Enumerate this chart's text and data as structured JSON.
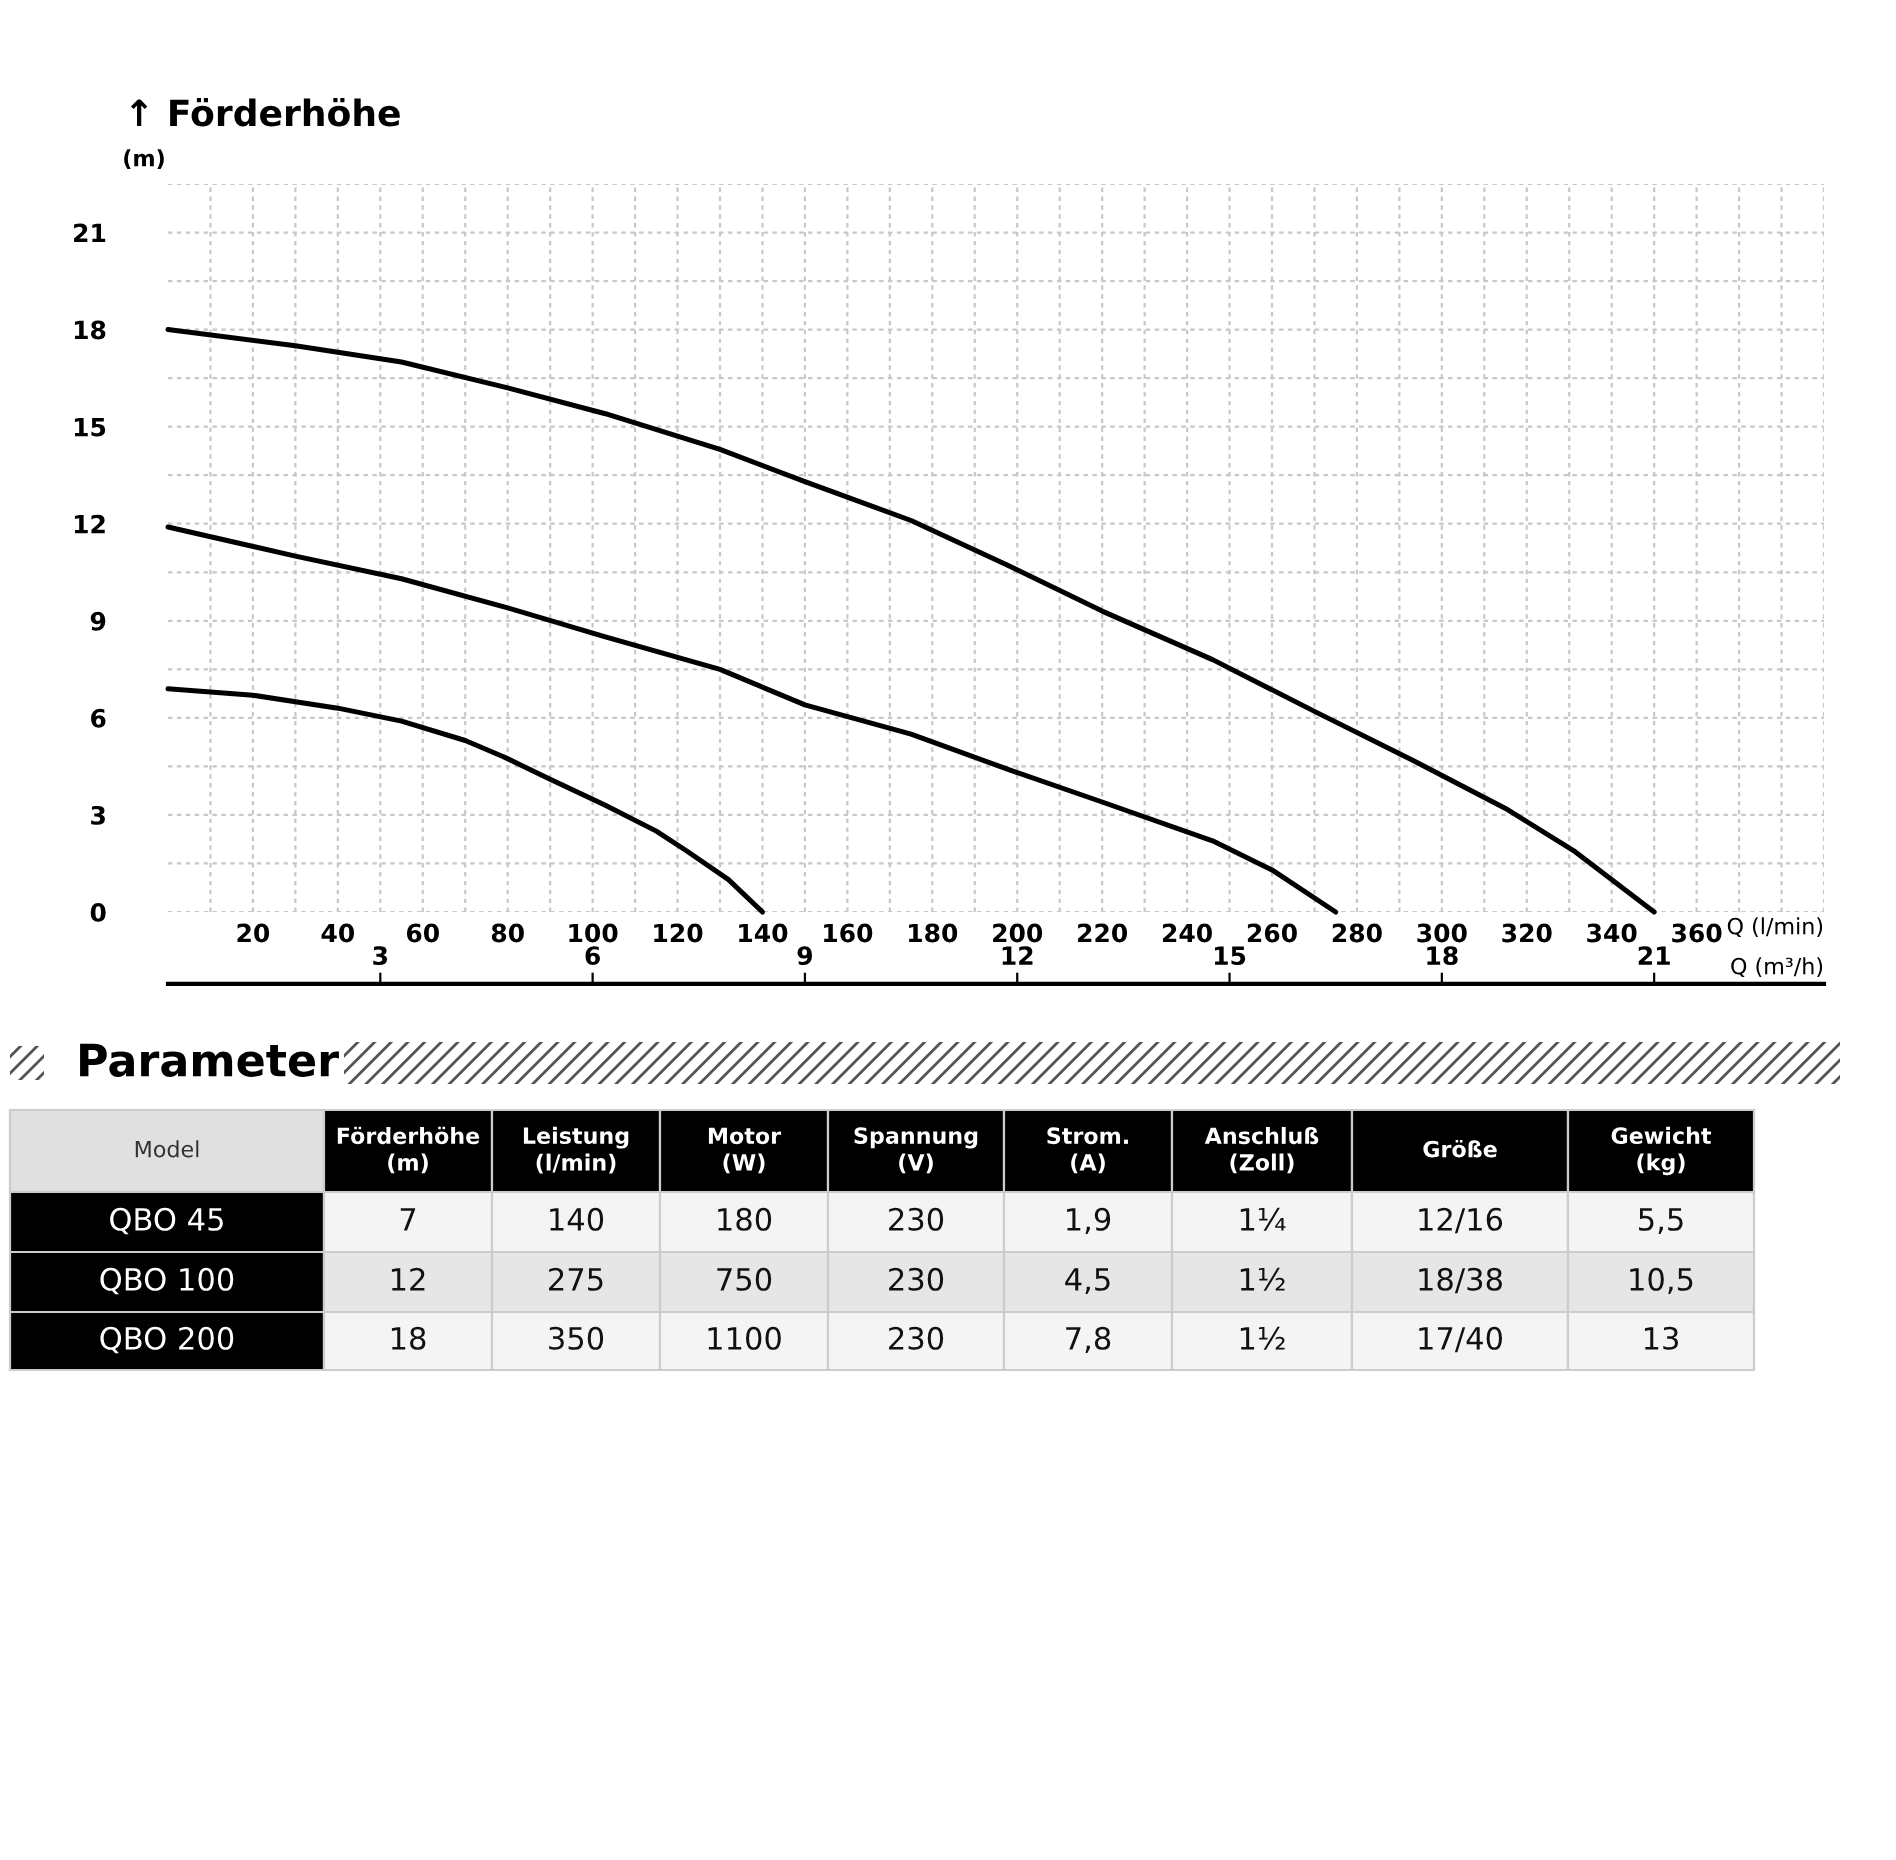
{
  "chart_data": [
    {
      "type": "line",
      "title": "↑ Förderhöhe",
      "ylabel": "(m)",
      "xlabel": "Q (l/min)",
      "x2label": "Q (m³/h)",
      "series": [
        {
          "color": "#000000",
          "x": [
            0,
            20,
            40,
            55,
            70,
            79,
            90,
            103,
            115,
            122,
            132,
            140
          ],
          "values": [
            6.9,
            6.7,
            6.3,
            5.9,
            5.3,
            4.8,
            4.1,
            3.3,
            2.5,
            1.9,
            1.0,
            0
          ]
        },
        {
          "color": "#000000",
          "x": [
            0,
            30,
            55,
            80,
            103,
            130,
            150,
            175,
            198,
            220,
            246,
            260,
            275
          ],
          "values": [
            11.9,
            11.0,
            10.3,
            9.4,
            8.5,
            7.5,
            6.4,
            5.5,
            4.4,
            3.4,
            2.2,
            1.3,
            0
          ]
        },
        {
          "color": "#000000",
          "x": [
            0,
            30,
            55,
            80,
            103,
            130,
            150,
            175,
            198,
            220,
            246,
            270,
            293,
            315,
            331,
            350
          ],
          "values": [
            18.0,
            17.5,
            17.0,
            16.2,
            15.4,
            14.3,
            13.3,
            12.1,
            10.7,
            9.3,
            7.8,
            6.2,
            4.7,
            3.2,
            1.9,
            0
          ]
        }
      ],
      "xlim": [
        0,
        390
      ],
      "xticks": [
        {
          "value": 10,
          "label": null
        },
        20,
        {
          "value": 30,
          "label": null
        },
        40,
        {
          "value": 50,
          "label": null
        },
        60,
        {
          "value": 70,
          "label": null
        },
        80,
        {
          "value": 90,
          "label": null
        },
        100,
        {
          "value": 110,
          "label": null
        },
        120,
        {
          "value": 130,
          "label": null
        },
        140,
        {
          "value": 150,
          "label": null
        },
        160,
        {
          "value": 170,
          "label": null
        },
        180,
        {
          "value": 190,
          "label": null
        },
        200,
        {
          "value": 210,
          "label": null
        },
        220,
        {
          "value": 230,
          "label": null
        },
        240,
        {
          "value": 250,
          "label": null
        },
        260,
        {
          "value": 270,
          "label": null
        },
        280,
        {
          "value": 290,
          "label": null
        },
        300,
        {
          "value": 310,
          "label": null
        },
        320,
        {
          "value": 330,
          "label": null
        },
        340,
        {
          "value": 350,
          "label": null
        },
        360,
        {
          "value": 370,
          "label": null
        },
        {
          "value": 380,
          "label": null
        },
        {
          "value": 390,
          "label": null
        }
      ],
      "ylim": [
        0,
        22.5
      ],
      "yticks": [
        0,
        {
          "value": 1.5,
          "label": null
        },
        3,
        {
          "value": 4.5,
          "label": null
        },
        6,
        {
          "value": 7.5,
          "label": null
        },
        9,
        {
          "value": 10.5,
          "label": null
        },
        12,
        {
          "value": 13.5,
          "label": null
        },
        15,
        {
          "value": 16.5,
          "label": null
        },
        18,
        {
          "value": 19.5,
          "label": null
        },
        21,
        {
          "value": 22.5,
          "label": null
        }
      ],
      "x2lim": [
        0,
        23.4
      ],
      "x2ticks": [
        3,
        6,
        9,
        12,
        15,
        18,
        21
      ],
      "grid": true,
      "marker": "none",
      "line_style": "solid"
    },
    {
      "type": "other",
      "title": "Parameter",
      "annotations": [
        "Model",
        "Förderhöhe\n(m)",
        "Leistung\n(l/min)",
        "Motor\n(W)",
        "Spannung\n(V)",
        "Strom.\n(A)",
        "Anschluß\n(Zoll)",
        "Größe",
        "Gewicht\n(kg)",
        "QBO 45",
        "7",
        "140",
        "180",
        "230",
        "1,9",
        "1¼",
        "12/16",
        "5,5",
        "QBO 100",
        "12",
        "275",
        "750",
        "230",
        "4,5",
        "1½",
        "18/38",
        "10,5",
        "QBO 200",
        "18",
        "350",
        "1100",
        "230",
        "7,8",
        "1½",
        "17/40",
        "13"
      ]
    }
  ]
}
